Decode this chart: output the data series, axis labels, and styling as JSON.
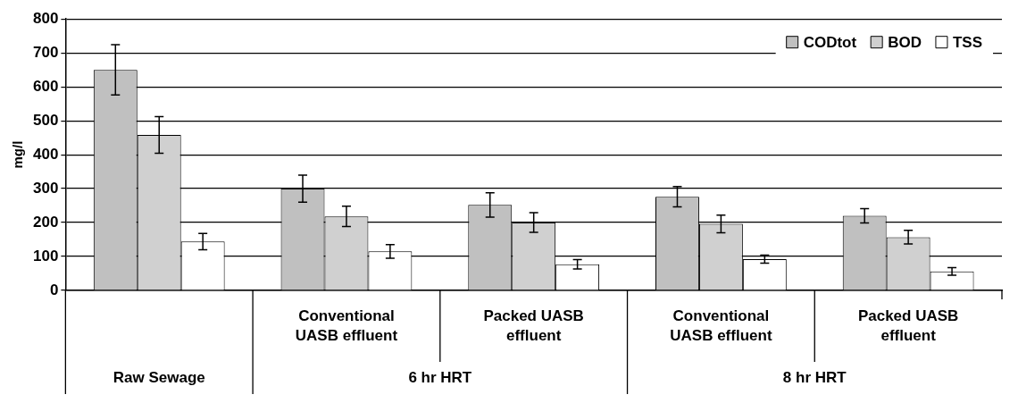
{
  "chart_data": {
    "type": "bar",
    "ylabel": "mg/l",
    "categories": [
      null,
      "Conventional UASB effluent",
      "Packed  UASB effluent",
      "Conventional UASB effluent",
      "Packed  UASB effluent"
    ],
    "series": [
      {
        "name": "CODtot",
        "color": "#c0c0c0",
        "values": [
          650,
          300,
          252,
          276,
          220
        ],
        "errors": [
          74,
          40,
          36,
          30,
          21
        ]
      },
      {
        "name": "BOD",
        "color": "#d0d0d0",
        "values": [
          458,
          218,
          200,
          196,
          157
        ],
        "errors": [
          54,
          30,
          29,
          26,
          20
        ]
      },
      {
        "name": "TSS",
        "color": "#ffffff",
        "values": [
          144,
          115,
          77,
          92,
          56
        ],
        "errors": [
          24,
          20,
          14,
          12,
          11
        ]
      }
    ],
    "annotations": [
      "Raw Sewage",
      "6 hr HRT",
      "8 hr HRT"
    ],
    "ylim": [
      0,
      800
    ],
    "yticks": [
      0,
      100,
      200,
      300,
      400,
      500,
      600,
      700,
      800
    ],
    "grid": "y",
    "legend": "top right"
  }
}
